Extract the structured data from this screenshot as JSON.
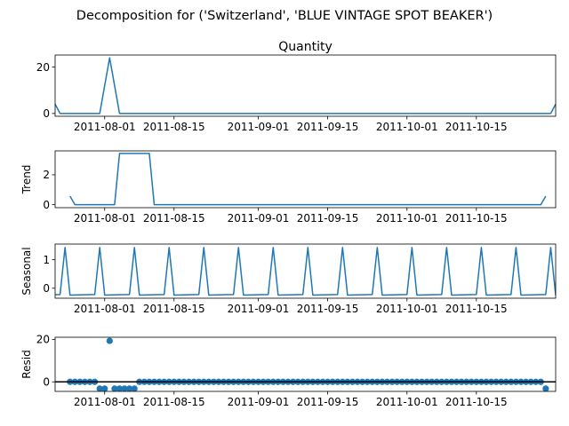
{
  "figure": {
    "title": "Decomposition for ('Switzerland', 'BLUE VINTAGE SPOT BEAKER')"
  },
  "chart_data": [
    {
      "type": "line",
      "title": "Quantity",
      "ylabel": "",
      "x_start": "2011-07-22",
      "x_end": "2011-10-31",
      "x_ticks": [
        "2011-08-01",
        "2011-08-15",
        "2011-09-01",
        "2011-09-15",
        "2011-10-01",
        "2011-10-15"
      ],
      "y_ticks": [
        0,
        20
      ],
      "ylim": [
        -1.2,
        25.2
      ],
      "color": "#1f77b4",
      "grid": false,
      "points": [
        {
          "x": "2011-07-22",
          "y": 4
        },
        {
          "x": "2011-07-23",
          "y": 0
        },
        {
          "x": "2011-07-31",
          "y": 0
        },
        {
          "x": "2011-08-02",
          "y": 24
        },
        {
          "x": "2011-08-04",
          "y": 0
        },
        {
          "x": "2011-10-30",
          "y": 0
        },
        {
          "x": "2011-10-31",
          "y": 4
        }
      ]
    },
    {
      "type": "line",
      "title": "",
      "ylabel": "Trend",
      "x_start": "2011-07-22",
      "x_end": "2011-10-31",
      "x_ticks": [
        "2011-08-01",
        "2011-08-15",
        "2011-09-01",
        "2011-09-15",
        "2011-10-01",
        "2011-10-15"
      ],
      "y_ticks": [
        0,
        2
      ],
      "ylim": [
        -0.2,
        3.6
      ],
      "color": "#1f77b4",
      "grid": false,
      "points": [
        {
          "x": "2011-07-25",
          "y": 0.57
        },
        {
          "x": "2011-07-26",
          "y": 0
        },
        {
          "x": "2011-07-30",
          "y": 0
        },
        {
          "x": "2011-08-03",
          "y": 0
        },
        {
          "x": "2011-08-04",
          "y": 3.43
        },
        {
          "x": "2011-08-10",
          "y": 3.43
        },
        {
          "x": "2011-08-11",
          "y": 0
        },
        {
          "x": "2011-10-28",
          "y": 0
        },
        {
          "x": "2011-10-29",
          "y": 0.57
        }
      ]
    },
    {
      "type": "line",
      "title": "",
      "ylabel": "Seasonal",
      "x_start": "2011-07-22",
      "x_end": "2011-10-31",
      "x_ticks": [
        "2011-08-01",
        "2011-08-15",
        "2011-09-01",
        "2011-09-15",
        "2011-10-01",
        "2011-10-15"
      ],
      "y_ticks": [
        0,
        1
      ],
      "ylim": [
        -0.35,
        1.55
      ],
      "color": "#1f77b4",
      "grid": false,
      "period": 7,
      "peak_start": "2011-07-24",
      "peak_value": 1.43,
      "trough_value": -0.24,
      "base_value": -0.22
    },
    {
      "type": "scatter",
      "title": "",
      "ylabel": "Resid",
      "x_start": "2011-07-22",
      "x_end": "2011-10-31",
      "x_ticks": [
        "2011-08-01",
        "2011-08-15",
        "2011-09-01",
        "2011-09-15",
        "2011-10-01",
        "2011-10-15"
      ],
      "y_ticks": [
        0,
        20
      ],
      "ylim": [
        -4.5,
        21
      ],
      "color": "#1f77b4",
      "zero_line": true,
      "grid": false,
      "x_first": "2011-07-25",
      "x_last": "2011-10-29",
      "low_dates": [
        "2011-07-31",
        "2011-08-01",
        "2011-08-03",
        "2011-08-04",
        "2011-08-05",
        "2011-08-06",
        "2011-08-07",
        "2011-10-29"
      ],
      "low_value": -3.2,
      "spike_date": "2011-08-02",
      "spike_value": 19.3
    }
  ]
}
